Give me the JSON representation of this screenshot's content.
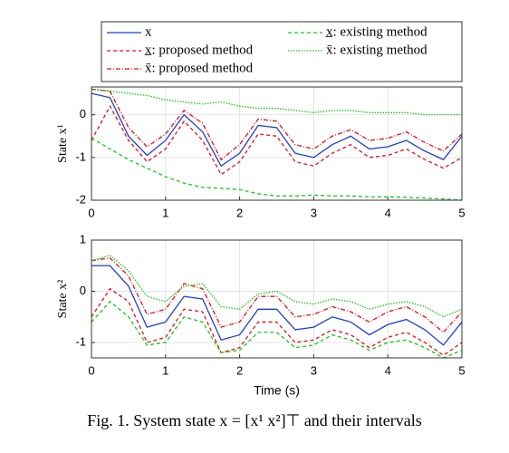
{
  "chart_data": [
    {
      "type": "line",
      "ylabel": "State x¹",
      "x": [
        0,
        0.25,
        0.5,
        0.75,
        1,
        1.25,
        1.5,
        1.75,
        2,
        2.25,
        2.5,
        2.75,
        3,
        3.25,
        3.5,
        3.75,
        4,
        4.25,
        4.5,
        4.75,
        5
      ],
      "xlim": [
        0,
        5
      ],
      "xticks": [
        0,
        1,
        2,
        3,
        4,
        5
      ],
      "ylim": [
        -2,
        0.65
      ],
      "yticks": [
        -2,
        -1,
        0
      ],
      "grid": true,
      "series": [
        {
          "name": "x",
          "color": "#1f3fd8",
          "style": "solid",
          "values": [
            0.5,
            0.4,
            -0.5,
            -0.95,
            -0.6,
            0.0,
            -0.4,
            -1.2,
            -0.9,
            -0.25,
            -0.3,
            -0.9,
            -1.0,
            -0.7,
            -0.5,
            -0.8,
            -0.75,
            -0.6,
            -0.85,
            -1.05,
            -0.5
          ]
        },
        {
          "name": "x̲: proposed method",
          "color": "#e8101a",
          "style": "dashed",
          "values": [
            -0.6,
            0.2,
            -0.6,
            -1.1,
            -0.8,
            -0.15,
            -0.6,
            -1.4,
            -1.1,
            -0.45,
            -0.5,
            -1.1,
            -1.2,
            -0.9,
            -0.7,
            -1.0,
            -0.95,
            -0.8,
            -1.05,
            -1.25,
            -1.0
          ]
        },
        {
          "name": "x̄: proposed method",
          "color": "#e8101a",
          "style": "dashdot",
          "values": [
            0.6,
            0.55,
            -0.3,
            -0.75,
            -0.45,
            0.1,
            -0.2,
            -1.05,
            -0.7,
            -0.1,
            -0.15,
            -0.7,
            -0.8,
            -0.5,
            -0.35,
            -0.6,
            -0.55,
            -0.4,
            -0.65,
            -0.85,
            -0.45
          ]
        },
        {
          "name": "x̲: existing method",
          "color": "#10cc10",
          "style": "dashed",
          "values": [
            -0.55,
            -0.8,
            -1.05,
            -1.25,
            -1.45,
            -1.6,
            -1.7,
            -1.72,
            -1.75,
            -1.85,
            -1.9,
            -1.9,
            -1.88,
            -1.9,
            -1.9,
            -1.92,
            -1.92,
            -1.93,
            -1.95,
            -1.97,
            -2.0
          ]
        },
        {
          "name": "x̄: existing method",
          "color": "#10cc10",
          "style": "dotted",
          "values": [
            0.6,
            0.55,
            0.5,
            0.45,
            0.35,
            0.3,
            0.25,
            0.3,
            0.2,
            0.15,
            0.15,
            0.1,
            0.05,
            0.1,
            0.1,
            0.05,
            0.05,
            0.05,
            0.0,
            0.0,
            0.0
          ]
        }
      ]
    },
    {
      "type": "line",
      "ylabel": "State x²",
      "xlabel": "Time (s)",
      "x": [
        0,
        0.25,
        0.5,
        0.75,
        1,
        1.25,
        1.5,
        1.75,
        2,
        2.25,
        2.5,
        2.75,
        3,
        3.25,
        3.5,
        3.75,
        4,
        4.25,
        4.5,
        4.75,
        5
      ],
      "xlim": [
        0,
        5
      ],
      "xticks": [
        0,
        1,
        2,
        3,
        4,
        5
      ],
      "ylim": [
        -1.3,
        1
      ],
      "yticks": [
        -1,
        0,
        1
      ],
      "grid": true,
      "series": [
        {
          "color": "#1f3fd8",
          "style": "solid",
          "values": [
            0.5,
            0.5,
            0.1,
            -0.7,
            -0.6,
            -0.1,
            -0.15,
            -0.95,
            -0.85,
            -0.35,
            -0.35,
            -0.75,
            -0.7,
            -0.5,
            -0.6,
            -0.85,
            -0.65,
            -0.55,
            -0.75,
            -1.05,
            -0.6
          ]
        },
        {
          "color": "#e8101a",
          "style": "dashed",
          "values": [
            -0.5,
            0.05,
            -0.2,
            -1.0,
            -0.9,
            -0.35,
            -0.4,
            -1.2,
            -1.1,
            -0.6,
            -0.6,
            -1.0,
            -0.95,
            -0.75,
            -0.85,
            -1.1,
            -0.9,
            -0.8,
            -1.0,
            -1.25,
            -1.0
          ]
        },
        {
          "color": "#e8101a",
          "style": "dashdot",
          "values": [
            0.6,
            0.65,
            0.3,
            -0.45,
            -0.35,
            0.15,
            0.05,
            -0.7,
            -0.6,
            -0.1,
            -0.1,
            -0.5,
            -0.45,
            -0.3,
            -0.4,
            -0.6,
            -0.4,
            -0.3,
            -0.5,
            -0.8,
            -0.4
          ]
        },
        {
          "color": "#10cc10",
          "style": "dashed",
          "values": [
            -0.6,
            -0.2,
            -0.5,
            -1.05,
            -1.0,
            -0.5,
            -0.6,
            -1.2,
            -1.15,
            -0.8,
            -0.8,
            -1.1,
            -1.05,
            -0.85,
            -0.95,
            -1.15,
            -1.0,
            -0.95,
            -1.1,
            -1.3,
            -1.15
          ]
        },
        {
          "color": "#10cc10",
          "style": "dotted",
          "values": [
            0.6,
            0.7,
            0.4,
            -0.1,
            -0.2,
            0.1,
            0.15,
            -0.3,
            -0.35,
            -0.05,
            0.0,
            -0.2,
            -0.25,
            -0.15,
            -0.2,
            -0.35,
            -0.25,
            -0.2,
            -0.3,
            -0.5,
            -0.35
          ]
        }
      ]
    }
  ],
  "caption": "Fig. 1. System state x = [x¹ x²]⊤ and their intervals"
}
